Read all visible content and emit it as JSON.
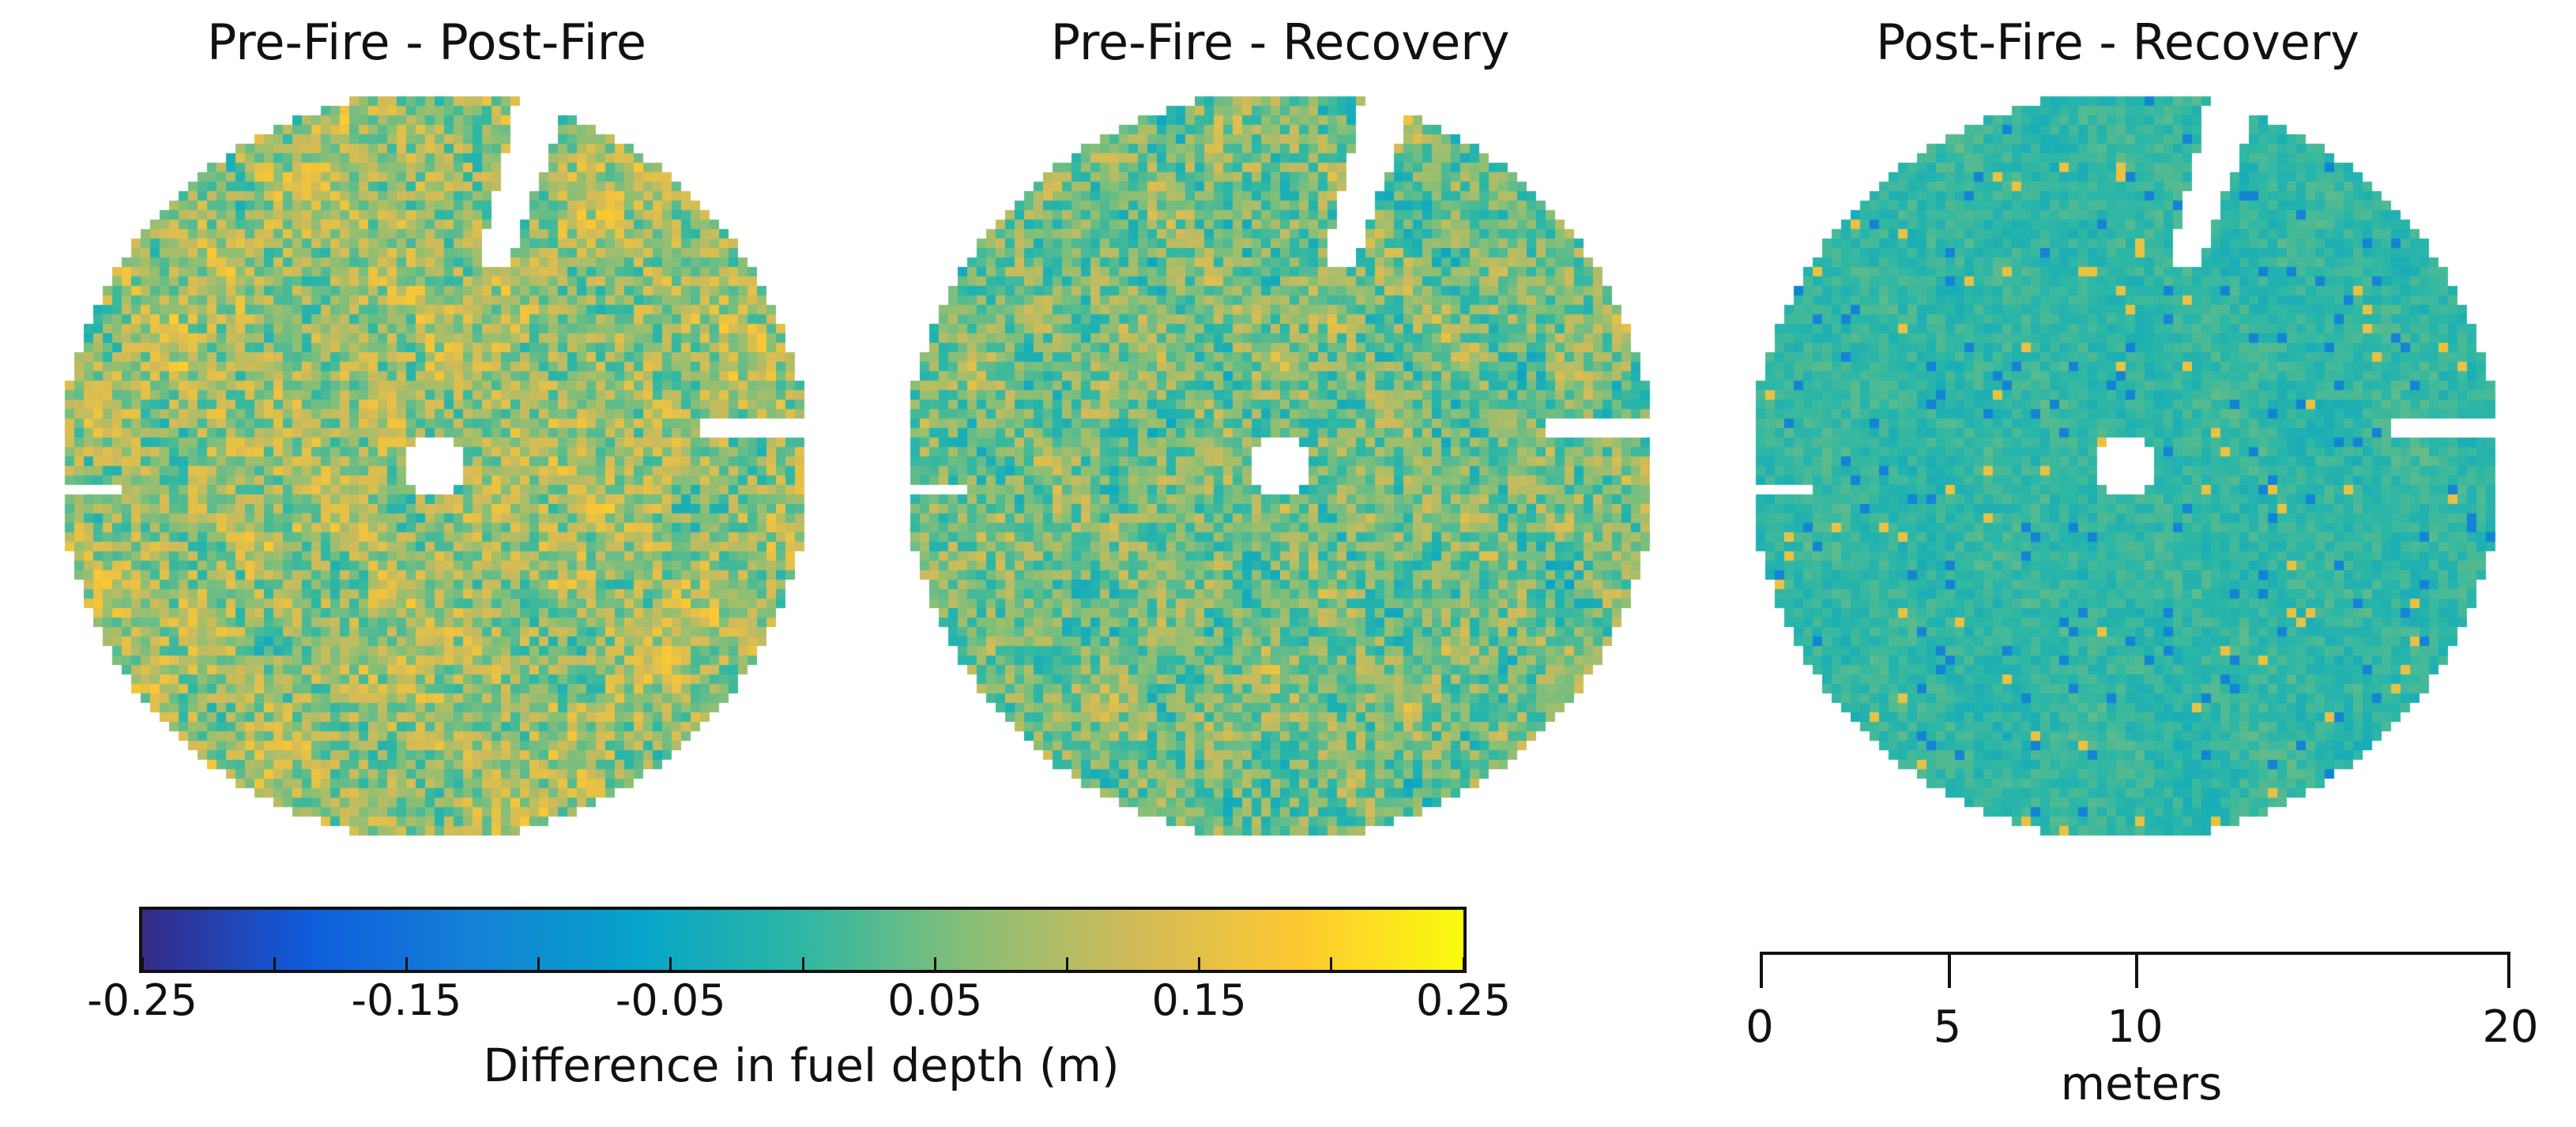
{
  "chart_data": [
    {
      "type": "heatmap",
      "title": "Pre-Fire - Post-Fire",
      "description_shape": "circular plot grid",
      "colormap": "parula",
      "range": [
        -0.25,
        0.25
      ],
      "character": "mostly positive, many yellow/green cells"
    },
    {
      "type": "heatmap",
      "title": "Pre-Fire - Recovery",
      "description_shape": "circular plot grid",
      "colormap": "parula",
      "range": [
        -0.25,
        0.25
      ],
      "character": "mixed green/teal with yellow patches"
    },
    {
      "type": "heatmap",
      "title": "Post-Fire - Recovery",
      "description_shape": "circular plot grid",
      "colormap": "parula",
      "range": [
        -0.25,
        0.25
      ],
      "character": "mostly near-zero teal, few blue/yellow cells"
    }
  ],
  "colorbar": {
    "min": -0.25,
    "max": 0.25,
    "tick_labels": [
      "-0.25",
      "-0.15",
      "-0.05",
      "0.05",
      "0.15",
      "0.25"
    ],
    "tick_values": [
      -0.25,
      -0.15,
      -0.05,
      0.05,
      0.15,
      0.25
    ],
    "minor_tick_values": [
      -0.25,
      -0.2,
      -0.15,
      -0.1,
      -0.05,
      0,
      0.05,
      0.1,
      0.15,
      0.2,
      0.25
    ],
    "label": "Difference in fuel depth (m)",
    "colors": [
      "#352a87",
      "#0f5cdd",
      "#1481d6",
      "#06a4ca",
      "#2eb7a4",
      "#87bf77",
      "#d1bb59",
      "#fec832",
      "#f9fb0e"
    ]
  },
  "scale_bar": {
    "tick_labels": [
      "0",
      "5",
      "10",
      "20"
    ],
    "tick_values": [
      0,
      5,
      10,
      20
    ],
    "max": 20,
    "label": "meters"
  }
}
